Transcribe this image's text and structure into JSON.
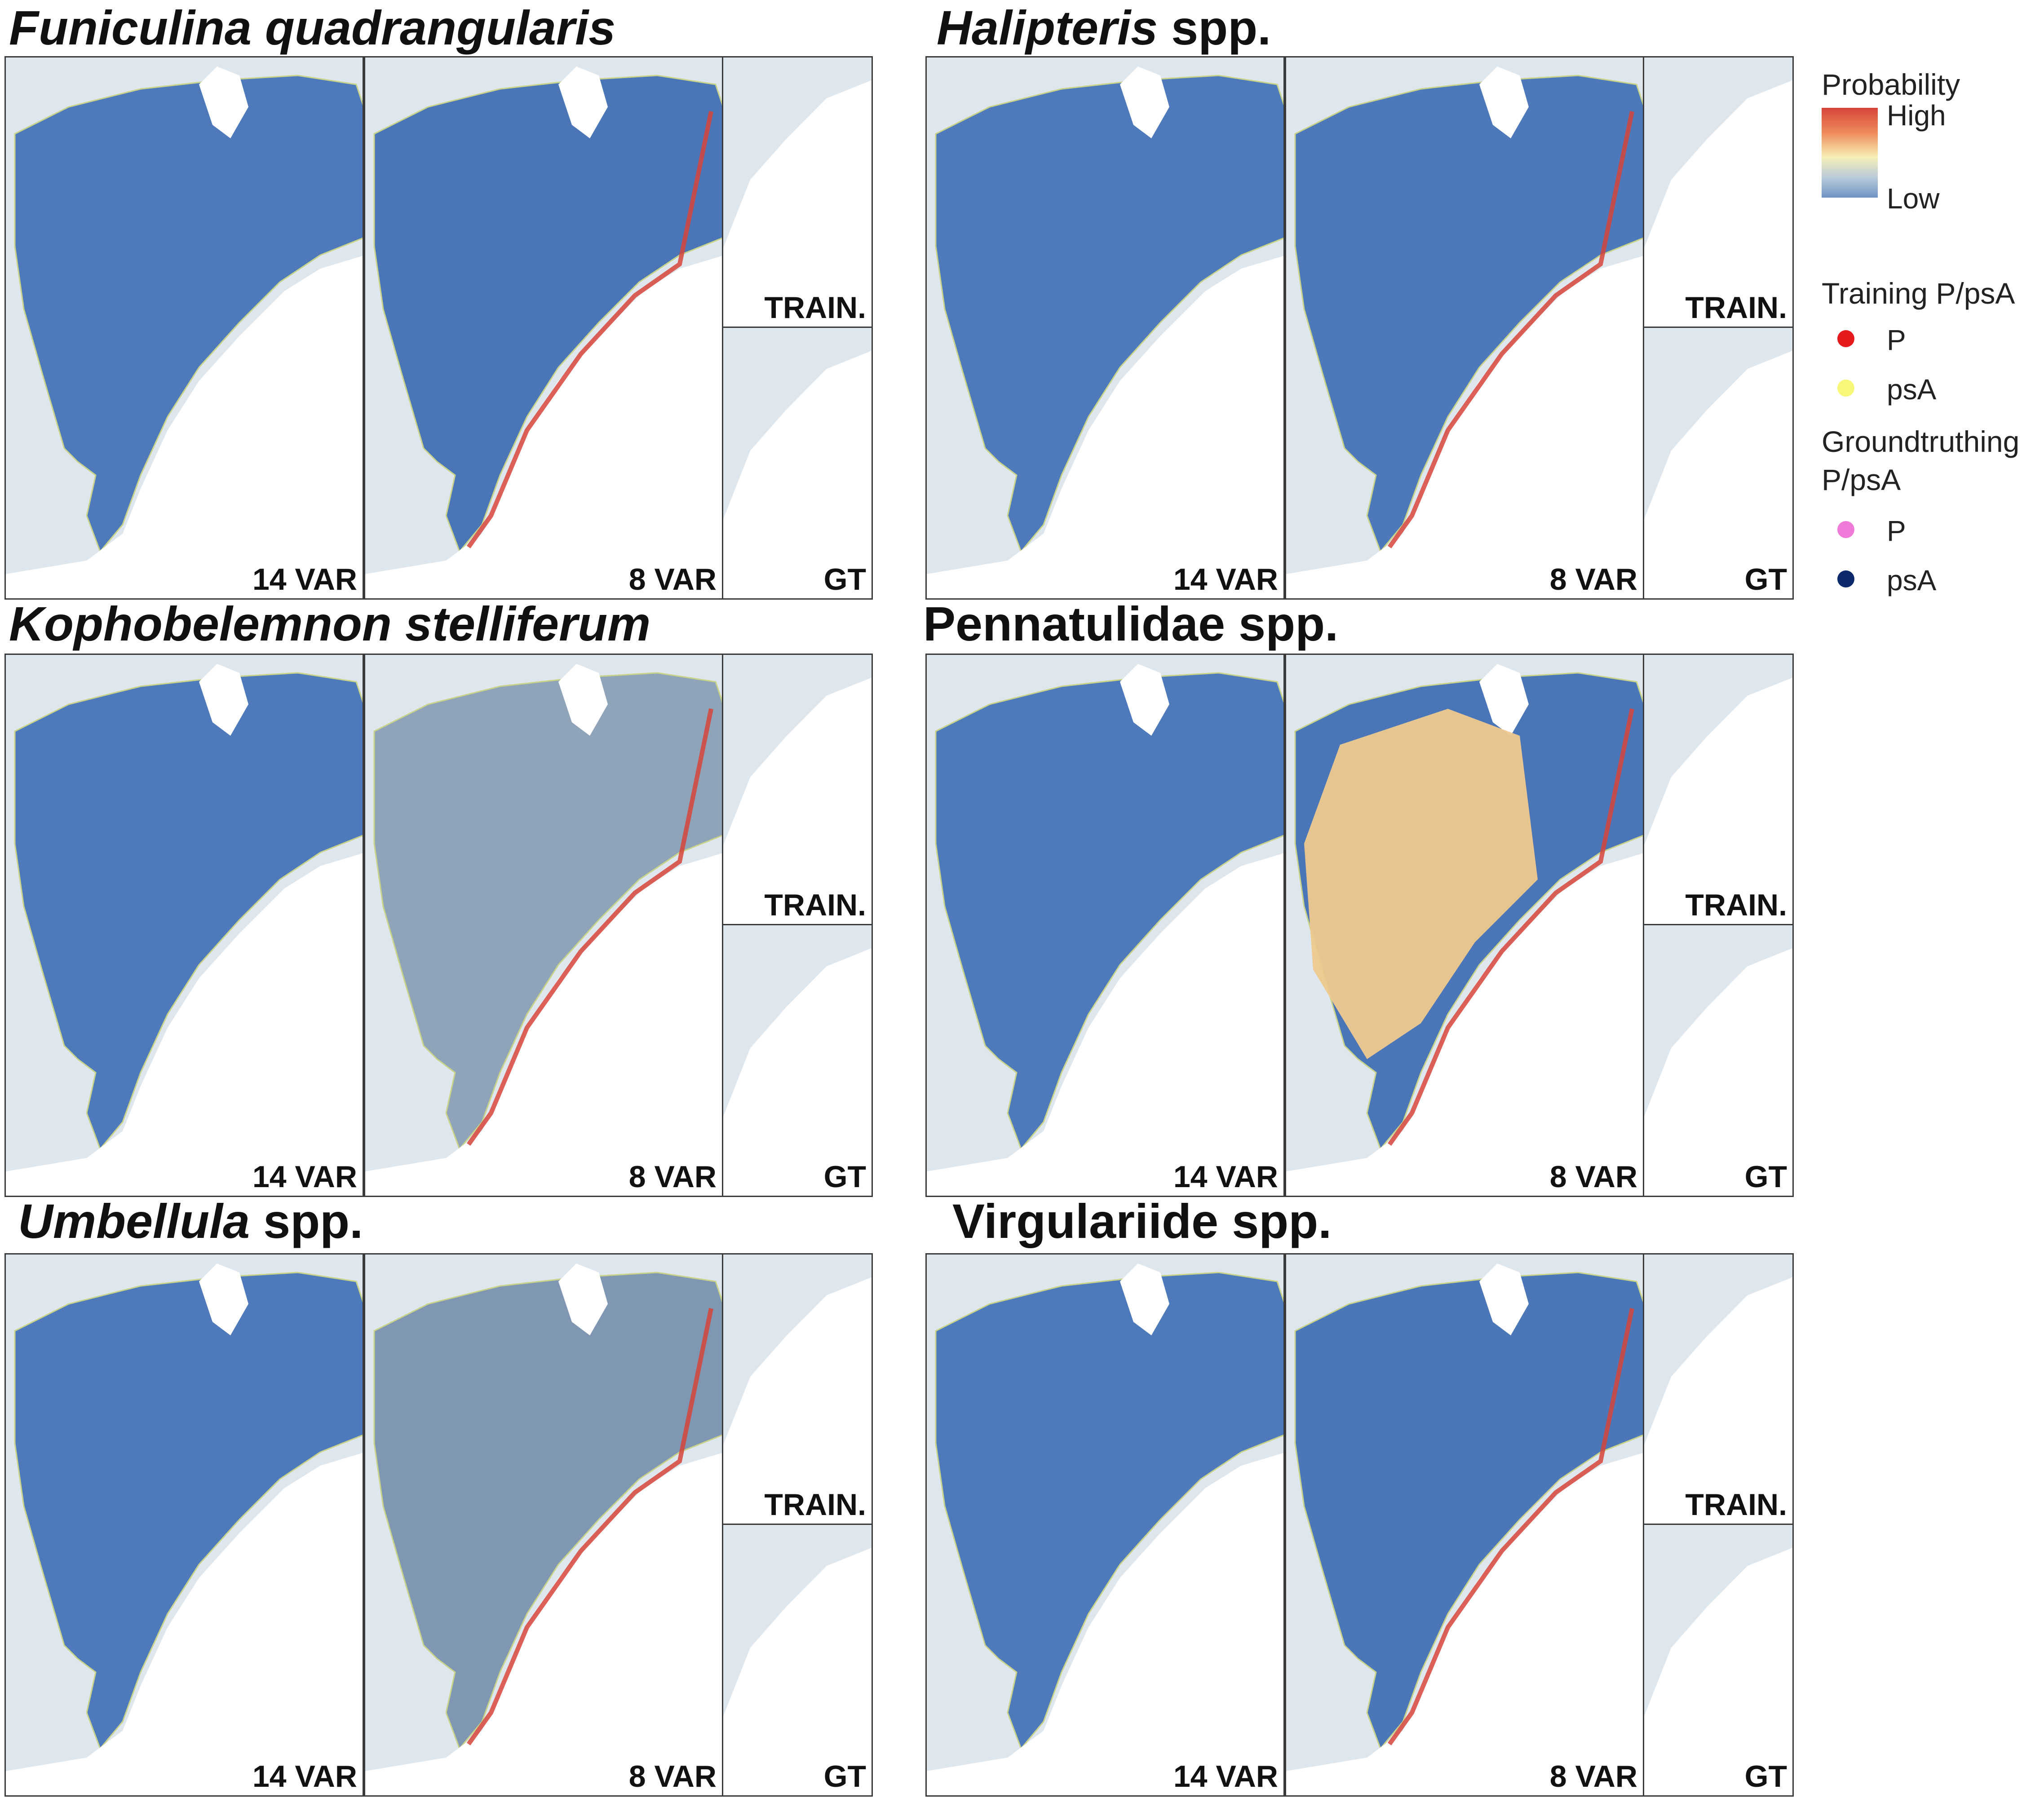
{
  "blocks": [
    {
      "title": {
        "italic": "Funiculina quadrangularis",
        "plain": ""
      },
      "labels": {
        "m14": "14 VAR",
        "m8": "8 VAR",
        "train": "TRAIN.",
        "gt": "GT"
      }
    },
    {
      "title": {
        "italic": "Halipteris",
        "plain": " spp."
      },
      "labels": {
        "m14": "14 VAR",
        "m8": "8 VAR",
        "train": "TRAIN.",
        "gt": "GT"
      }
    },
    {
      "title": {
        "italic": "Kophobelemnon stelliferum",
        "plain": ""
      },
      "labels": {
        "m14": "14 VAR",
        "m8": "8 VAR",
        "train": "TRAIN.",
        "gt": "GT"
      }
    },
    {
      "title": {
        "italic": "",
        "plain": "Pennatulidae spp."
      },
      "labels": {
        "m14": "14 VAR",
        "m8": "8 VAR",
        "train": "TRAIN.",
        "gt": "GT"
      }
    },
    {
      "title": {
        "italic": "Umbellula",
        "plain": " spp."
      },
      "labels": {
        "m14": "14 VAR",
        "m8": "8 VAR",
        "train": "TRAIN.",
        "gt": "GT"
      }
    },
    {
      "title": {
        "italic": "",
        "plain": "Virgulariide spp."
      },
      "labels": {
        "m14": "14 VAR",
        "m8": "8 VAR",
        "train": "TRAIN.",
        "gt": "GT"
      }
    }
  ],
  "legend": {
    "probability_title": "Probability",
    "high": "High",
    "low": "Low",
    "training_title": "Training P/psA",
    "training_p": "P",
    "training_psa": "psA",
    "gt_title_line1": "Groundtruthing",
    "gt_title_line2": "P/psA",
    "gt_p": "P",
    "gt_psa": "psA"
  },
  "colors": {
    "training_p": "#e41a1c",
    "training_psa": "#f7f77a",
    "gt_p": "#f07ad8",
    "gt_psa": "#0c2a6b",
    "low": "#4f7bbf",
    "high": "#d6443a"
  }
}
